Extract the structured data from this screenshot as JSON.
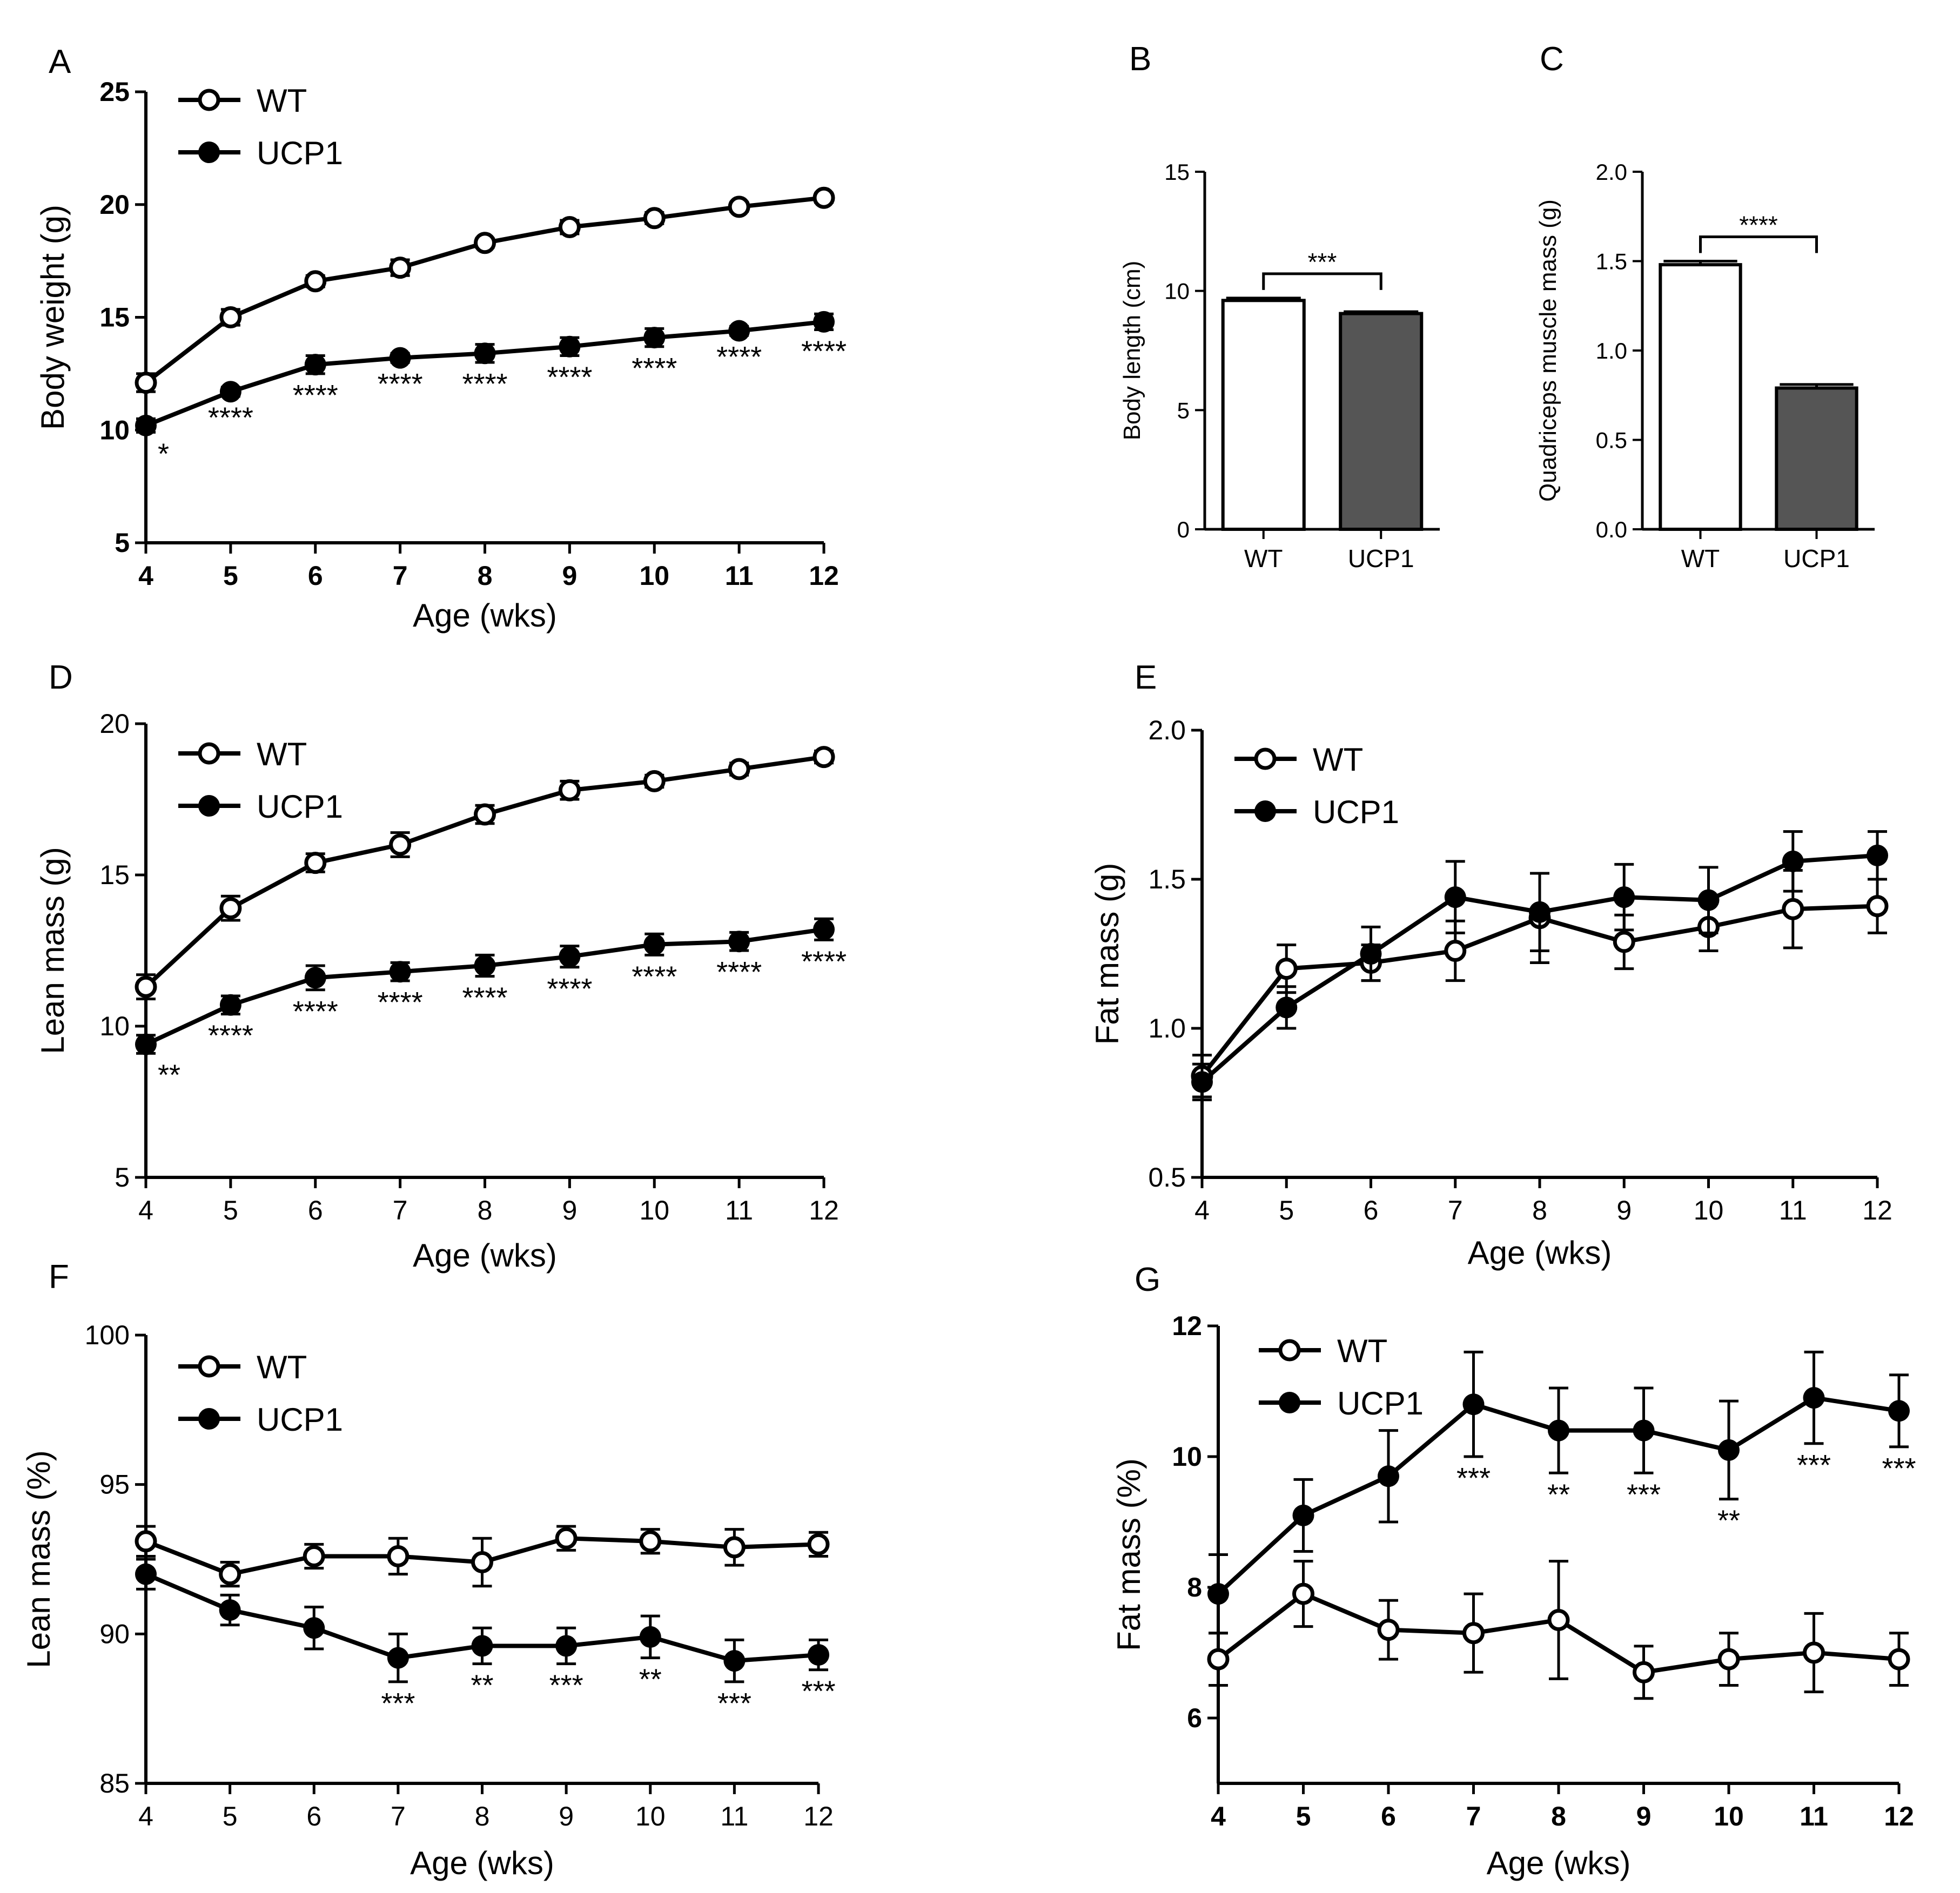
{
  "chart_data": [
    {
      "id": "A",
      "type": "line",
      "panel_label": "A",
      "xlabel": "Age  (wks)",
      "ylabel": "Body weight (g)",
      "xlim": [
        4,
        12
      ],
      "ylim": [
        5,
        25
      ],
      "xticks": [
        "4",
        "5",
        "6",
        "7",
        "8",
        "9",
        "10",
        "11",
        "12"
      ],
      "yticks": [
        "5",
        "10",
        "15",
        "20",
        "25"
      ],
      "legend": "top-left",
      "x": [
        4,
        5,
        6,
        7,
        8,
        9,
        10,
        11,
        12
      ],
      "series": [
        {
          "name": "WT",
          "marker": "open",
          "values": [
            12.1,
            15.0,
            16.6,
            17.2,
            18.3,
            19.0,
            19.4,
            19.9,
            20.3
          ],
          "errors": [
            0.4,
            0.35,
            0.25,
            0.35,
            0.2,
            0.3,
            0.25,
            0.2,
            0.2
          ]
        },
        {
          "name": "UCP1",
          "marker": "filled",
          "values": [
            10.2,
            11.7,
            12.9,
            13.2,
            13.4,
            13.7,
            14.1,
            14.4,
            14.8
          ],
          "errors": [
            0.3,
            0.2,
            0.4,
            0.2,
            0.4,
            0.4,
            0.4,
            0.2,
            0.35
          ]
        }
      ],
      "annotations": [
        {
          "x": 4,
          "text": "*"
        },
        {
          "x": 5,
          "text": "****"
        },
        {
          "x": 6,
          "text": "****"
        },
        {
          "x": 7,
          "text": "****"
        },
        {
          "x": 8,
          "text": "****"
        },
        {
          "x": 9,
          "text": "****"
        },
        {
          "x": 10,
          "text": "****"
        },
        {
          "x": 11,
          "text": "****"
        },
        {
          "x": 12,
          "text": "****"
        }
      ]
    },
    {
      "id": "B",
      "type": "bar",
      "panel_label": "B",
      "ylabel": "Body length (cm)",
      "ylim": [
        0,
        15
      ],
      "yticks": [
        "0",
        "5",
        "10",
        "15"
      ],
      "categories": [
        "WT",
        "UCP1"
      ],
      "values": [
        9.6,
        9.05
      ],
      "errors": [
        0.1,
        0.08
      ],
      "colors": [
        "#ffffff",
        "#555555"
      ],
      "significance": "***"
    },
    {
      "id": "C",
      "type": "bar",
      "panel_label": "C",
      "ylabel": "Quadriceps muscle mass (g)",
      "ylim": [
        0,
        2.0
      ],
      "yticks": [
        "0.0",
        "0.5",
        "1.0",
        "1.5",
        "2.0"
      ],
      "categories": [
        "WT",
        "UCP1"
      ],
      "values": [
        1.48,
        0.79
      ],
      "errors": [
        0.02,
        0.02
      ],
      "colors": [
        "#ffffff",
        "#555555"
      ],
      "significance": "****"
    },
    {
      "id": "D",
      "type": "line",
      "panel_label": "D",
      "xlabel": "Age  (wks)",
      "ylabel": "Lean mass (g)",
      "xlim": [
        4,
        12
      ],
      "ylim": [
        5,
        20
      ],
      "xticks": [
        "4",
        "5",
        "6",
        "7",
        "8",
        "9",
        "10",
        "11",
        "12"
      ],
      "yticks": [
        "5",
        "10",
        "15",
        "20"
      ],
      "legend": "top-left",
      "x": [
        4,
        5,
        6,
        7,
        8,
        9,
        10,
        11,
        12
      ],
      "series": [
        {
          "name": "WT",
          "marker": "open",
          "values": [
            11.3,
            13.9,
            15.4,
            16.0,
            17.0,
            17.8,
            18.1,
            18.5,
            18.9
          ],
          "errors": [
            0.4,
            0.4,
            0.3,
            0.4,
            0.3,
            0.3,
            0.2,
            0.2,
            0.2
          ]
        },
        {
          "name": "UCP1",
          "marker": "filled",
          "values": [
            9.4,
            10.7,
            11.6,
            11.8,
            12.0,
            12.3,
            12.7,
            12.8,
            13.2
          ],
          "errors": [
            0.3,
            0.3,
            0.4,
            0.3,
            0.35,
            0.35,
            0.35,
            0.3,
            0.35
          ]
        }
      ],
      "annotations": [
        {
          "x": 4,
          "text": "**"
        },
        {
          "x": 5,
          "text": "****"
        },
        {
          "x": 6,
          "text": "****"
        },
        {
          "x": 7,
          "text": "****"
        },
        {
          "x": 8,
          "text": "****"
        },
        {
          "x": 9,
          "text": "****"
        },
        {
          "x": 10,
          "text": "****"
        },
        {
          "x": 11,
          "text": "****"
        },
        {
          "x": 12,
          "text": "****"
        }
      ]
    },
    {
      "id": "E",
      "type": "line",
      "panel_label": "E",
      "xlabel": "Age  (wks)",
      "ylabel": "Fat mass (g)",
      "xlim": [
        4,
        12
      ],
      "ylim": [
        0.5,
        2.0
      ],
      "xticks": [
        "4",
        "5",
        "6",
        "7",
        "8",
        "9",
        "10",
        "11",
        "12"
      ],
      "yticks": [
        "0.5",
        "1.0",
        "1.5",
        "2.0"
      ],
      "legend": "top-left",
      "x": [
        4,
        5,
        6,
        7,
        8,
        9,
        10,
        11,
        12
      ],
      "series": [
        {
          "name": "WT",
          "marker": "open",
          "values": [
            0.84,
            1.2,
            1.22,
            1.26,
            1.37,
            1.29,
            1.34,
            1.4,
            1.41
          ],
          "errors": [
            0.07,
            0.08,
            0.06,
            0.1,
            0.15,
            0.09,
            0.08,
            0.13,
            0.09
          ]
        },
        {
          "name": "UCP1",
          "marker": "filled",
          "values": [
            0.82,
            1.07,
            1.25,
            1.44,
            1.39,
            1.44,
            1.43,
            1.56,
            1.58
          ],
          "errors": [
            0.06,
            0.07,
            0.09,
            0.12,
            0.13,
            0.11,
            0.11,
            0.1,
            0.08
          ]
        }
      ],
      "annotations": []
    },
    {
      "id": "F",
      "type": "line",
      "panel_label": "F",
      "xlabel": "Age  (wks)",
      "ylabel": "Lean mass (%)",
      "xlim": [
        4,
        12
      ],
      "ylim": [
        85,
        100
      ],
      "xticks": [
        "4",
        "5",
        "6",
        "7",
        "8",
        "9",
        "10",
        "11",
        "12"
      ],
      "yticks": [
        "85",
        "90",
        "95",
        "100"
      ],
      "legend": "top-left",
      "x": [
        4,
        5,
        6,
        7,
        8,
        9,
        10,
        11,
        12
      ],
      "series": [
        {
          "name": "WT",
          "marker": "open",
          "values": [
            93.1,
            92.0,
            92.6,
            92.6,
            92.4,
            93.2,
            93.1,
            92.9,
            93.0
          ],
          "errors": [
            0.5,
            0.4,
            0.4,
            0.6,
            0.8,
            0.4,
            0.4,
            0.6,
            0.4
          ]
        },
        {
          "name": "UCP1",
          "marker": "filled",
          "values": [
            92.0,
            90.8,
            90.2,
            89.2,
            89.6,
            89.6,
            89.9,
            89.1,
            89.3
          ],
          "errors": [
            0.5,
            0.5,
            0.7,
            0.8,
            0.6,
            0.6,
            0.7,
            0.7,
            0.5
          ]
        }
      ],
      "annotations": [
        {
          "x": 7,
          "text": "***"
        },
        {
          "x": 8,
          "text": "**"
        },
        {
          "x": 9,
          "text": "***"
        },
        {
          "x": 10,
          "text": "**"
        },
        {
          "x": 11,
          "text": "***"
        },
        {
          "x": 12,
          "text": "***"
        }
      ]
    },
    {
      "id": "G",
      "type": "line",
      "panel_label": "G",
      "xlabel": "Age  (wks)",
      "ylabel": "Fat mass (%)",
      "xlim": [
        4,
        12
      ],
      "ylim": [
        5,
        12
      ],
      "xticks": [
        "4",
        "5",
        "6",
        "7",
        "8",
        "9",
        "10",
        "11",
        "12"
      ],
      "yticks": [
        "6",
        "8",
        "10",
        "12"
      ],
      "legend": "top-left",
      "x": [
        4,
        5,
        6,
        7,
        8,
        9,
        10,
        11,
        12
      ],
      "series": [
        {
          "name": "WT",
          "marker": "open",
          "values": [
            6.9,
            7.9,
            7.35,
            7.3,
            7.5,
            6.7,
            6.9,
            7.0,
            6.9
          ],
          "errors": [
            0.4,
            0.5,
            0.45,
            0.6,
            0.9,
            0.4,
            0.4,
            0.6,
            0.4
          ]
        },
        {
          "name": "UCP1",
          "marker": "filled",
          "values": [
            7.9,
            9.1,
            9.7,
            10.8,
            10.4,
            10.4,
            10.1,
            10.9,
            10.7
          ],
          "errors": [
            0.6,
            0.55,
            0.7,
            0.8,
            0.65,
            0.65,
            0.75,
            0.7,
            0.55
          ]
        }
      ],
      "annotations": [
        {
          "x": 7,
          "text": "***"
        },
        {
          "x": 8,
          "text": "**"
        },
        {
          "x": 9,
          "text": "***"
        },
        {
          "x": 10,
          "text": "**"
        },
        {
          "x": 11,
          "text": "***"
        },
        {
          "x": 12,
          "text": "***"
        }
      ]
    }
  ]
}
